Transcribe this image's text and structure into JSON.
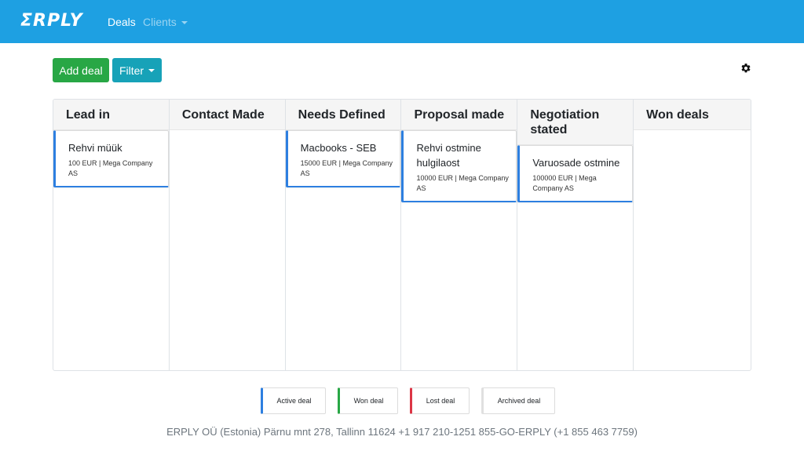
{
  "nav": {
    "logo": "ΣRPLY",
    "deals": "Deals",
    "clients": "Clients"
  },
  "toolbar": {
    "add_deal": "Add deal",
    "filter": "Filter",
    "settings_icon": "gear-icon"
  },
  "columns": [
    {
      "title": "Lead in",
      "cards": [
        {
          "title": "Rehvi müük",
          "sub": "100 EUR | Mega Company AS"
        }
      ]
    },
    {
      "title": "Contact Made",
      "cards": []
    },
    {
      "title": "Needs Defined",
      "cards": [
        {
          "title": "Macbooks - SEB",
          "sub": "15000 EUR | Mega Company AS"
        }
      ]
    },
    {
      "title": "Proposal made",
      "cards": [
        {
          "title": "Rehvi ostmine hulgilaost",
          "sub": "10000 EUR | Mega Company AS"
        }
      ]
    },
    {
      "title": "Negotiation stated",
      "cards": [
        {
          "title": "Varuosade ostmine",
          "sub": "100000 EUR | Mega Company AS"
        }
      ]
    },
    {
      "title": "Won deals",
      "cards": []
    }
  ],
  "legend": {
    "active": "Active deal",
    "won": "Won deal",
    "lost": "Lost deal",
    "archived": "Archived deal"
  },
  "colors": {
    "navbar": "#1ea0e2",
    "add_button": "#28a745",
    "filter_button": "#17a2b8",
    "active": "#2d7fe0",
    "won": "#28a745",
    "lost": "#dc3545",
    "archived": "#e0e0e0"
  },
  "footer": "ERPLY OÜ (Estonia) Pärnu mnt 278, Tallinn 11624 +1 917 210-1251 855-GO-ERPLY (+1 855 463 7759)"
}
